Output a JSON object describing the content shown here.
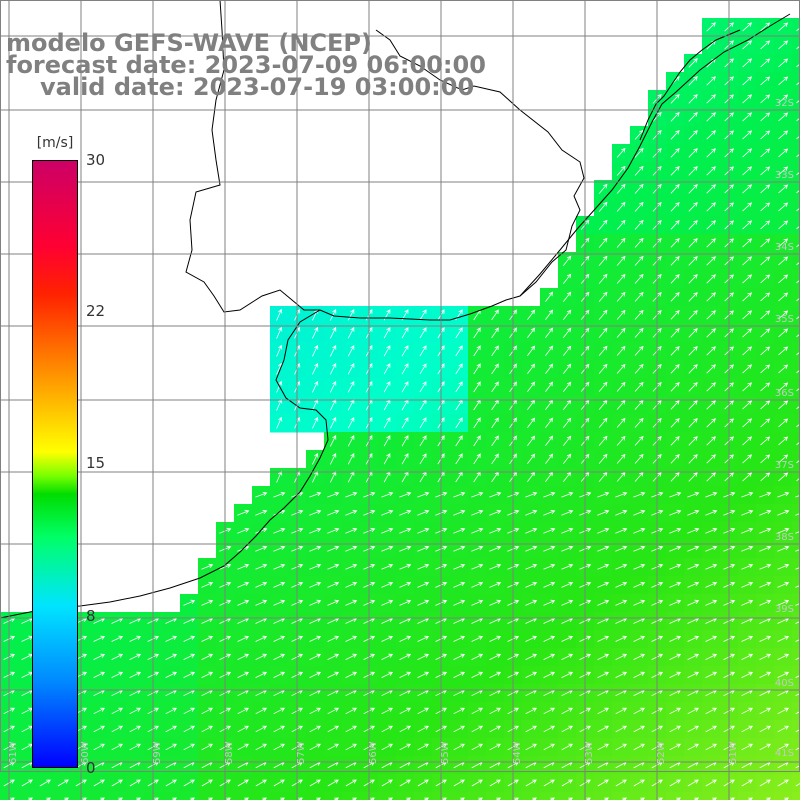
{
  "title": {
    "model": "modelo GEFS-WAVE (NCEP)",
    "forecast": "forecast date: 2023-07-09 06:00:00",
    "valid": "valid date: 2023-07-19 03:00:00"
  },
  "colorbar": {
    "unit": "[m/s]",
    "min": 0,
    "max": 30,
    "ticks": [
      "30",
      "22",
      "15",
      "8",
      "0"
    ],
    "colors": [
      "#0000ff",
      "#0088ff",
      "#00e5ff",
      "#00ff66",
      "#00dd00",
      "#77ff00",
      "#ffff00",
      "#ffaa00",
      "#ff6600",
      "#ff2200",
      "#ff0033",
      "#cc0066"
    ]
  },
  "lat_labels": [
    "32S",
    "33S",
    "34S",
    "35S",
    "36S",
    "37S",
    "38S",
    "39S",
    "40S",
    "41S"
  ],
  "lon_labels": [
    "61W",
    "60W",
    "59W",
    "58W",
    "57W",
    "56W",
    "55W",
    "54W",
    "53W",
    "52W",
    "51W"
  ],
  "field": {
    "variable": "wind speed with direction arrows",
    "range_on_map": [
      6,
      14
    ]
  },
  "colors": {
    "land": "#ffffff",
    "grid": "#808080",
    "coast": "#000000",
    "arrow": "#ffffff",
    "title": "#808080"
  }
}
